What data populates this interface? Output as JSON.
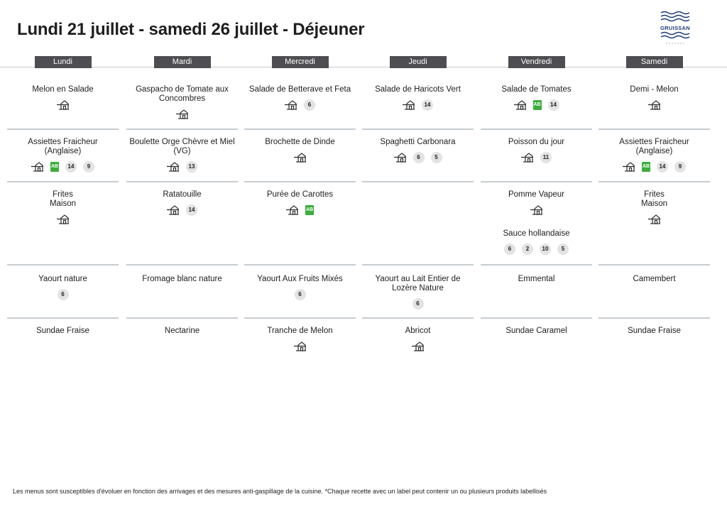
{
  "header": {
    "title": "Lundi 21 juillet - samedi 26 juillet  - Déjeuner",
    "logo_text": "GRUISSAN"
  },
  "days": [
    {
      "name": "Lundi",
      "courses": [
        {
          "name": "Melon en Salade",
          "icons": [
            "fait-maison"
          ],
          "allergens": []
        },
        {
          "name": "Assiettes Fraicheur (Anglaise)",
          "icons": [
            "fait-maison",
            "bio"
          ],
          "allergens": [
            "14",
            "9"
          ]
        },
        {
          "name": "Frites\nMaison",
          "icons": [
            "fait-maison"
          ],
          "allergens": []
        },
        {
          "name": "Yaourt nature",
          "icons": [],
          "allergens": [
            "6"
          ]
        },
        {
          "name": "Sundae Fraise",
          "icons": [],
          "allergens": []
        }
      ]
    },
    {
      "name": "Mardi",
      "courses": [
        {
          "name": "Gaspacho de Tomate aux Concombres",
          "icons": [
            "fait-maison"
          ],
          "allergens": []
        },
        {
          "name": "Boulette Orge Chèvre et Miel (VG)",
          "icons": [
            "fait-maison"
          ],
          "allergens": [
            "13"
          ]
        },
        {
          "name": "Ratatouille",
          "icons": [
            "fait-maison"
          ],
          "allergens": [
            "14"
          ]
        },
        {
          "name": "Fromage blanc nature",
          "icons": [],
          "allergens": []
        },
        {
          "name": "Nectarine",
          "icons": [],
          "allergens": []
        }
      ]
    },
    {
      "name": "Mercredi",
      "courses": [
        {
          "name": "Salade de Betterave et Feta",
          "icons": [
            "fait-maison"
          ],
          "allergens": [
            "6"
          ]
        },
        {
          "name": "Brochette de Dinde",
          "icons": [
            "fait-maison"
          ],
          "allergens": []
        },
        {
          "name": "Purée de Carottes",
          "icons": [
            "fait-maison",
            "bio"
          ],
          "allergens": []
        },
        {
          "name": "Yaourt Aux Fruits Mixés",
          "icons": [],
          "allergens": [
            "6"
          ]
        },
        {
          "name": "Tranche de Melon",
          "icons": [
            "fait-maison"
          ],
          "allergens": []
        }
      ]
    },
    {
      "name": "Jeudi",
      "courses": [
        {
          "name": "Salade de Haricots Vert",
          "icons": [
            "fait-maison"
          ],
          "allergens": [
            "14"
          ]
        },
        {
          "name": "Spaghetti Carbonara",
          "icons": [
            "fait-maison"
          ],
          "allergens": [
            "6",
            "5"
          ]
        },
        {
          "name": "",
          "icons": [],
          "allergens": []
        },
        {
          "name": "Yaourt au Lait Entier de Lozère Nature",
          "icons": [],
          "allergens": [
            "6"
          ]
        },
        {
          "name": "Abricot",
          "icons": [
            "fait-maison"
          ],
          "allergens": []
        }
      ]
    },
    {
      "name": "Vendredi",
      "courses": [
        {
          "name": "Salade de Tomates",
          "icons": [
            "fait-maison",
            "bio"
          ],
          "allergens": [
            "14"
          ]
        },
        {
          "name": "Poisson du jour",
          "icons": [
            "fait-maison"
          ],
          "allergens": [
            "11"
          ]
        },
        {
          "name": "Pomme Vapeur",
          "icons": [
            "fait-maison"
          ],
          "allergens": [],
          "extra": {
            "name": "Sauce hollandaise",
            "allergens": [
              "6",
              "2",
              "10",
              "5"
            ]
          }
        },
        {
          "name": "Emmental",
          "icons": [],
          "allergens": []
        },
        {
          "name": "Sundae Caramel",
          "icons": [],
          "allergens": []
        }
      ]
    },
    {
      "name": "Samedi",
      "courses": [
        {
          "name": "Demi - Melon",
          "icons": [
            "fait-maison"
          ],
          "allergens": []
        },
        {
          "name": "Assiettes Fraicheur (Anglaise)",
          "icons": [
            "fait-maison",
            "bio"
          ],
          "allergens": [
            "14",
            "9"
          ]
        },
        {
          "name": "Frites\nMaison",
          "icons": [
            "fait-maison"
          ],
          "allergens": []
        },
        {
          "name": "Camembert",
          "icons": [],
          "allergens": []
        },
        {
          "name": "Sundae Fraise",
          "icons": [],
          "allergens": []
        }
      ]
    }
  ],
  "footer": {
    "note": "Les menus sont susceptibles d'évoluer en fonction des arrivages et des mesures anti-gaspillage de la cuisine. *Chaque recette avec un label peut contenir un ou plusieurs produits labellisés"
  },
  "colors": {
    "header_bg": "#4e4e52",
    "allergen_bg": "#e3e3e3",
    "bio_green": "#3cad3b",
    "divider": "#c6ccd0",
    "logo_blue": "#1f3b78"
  }
}
